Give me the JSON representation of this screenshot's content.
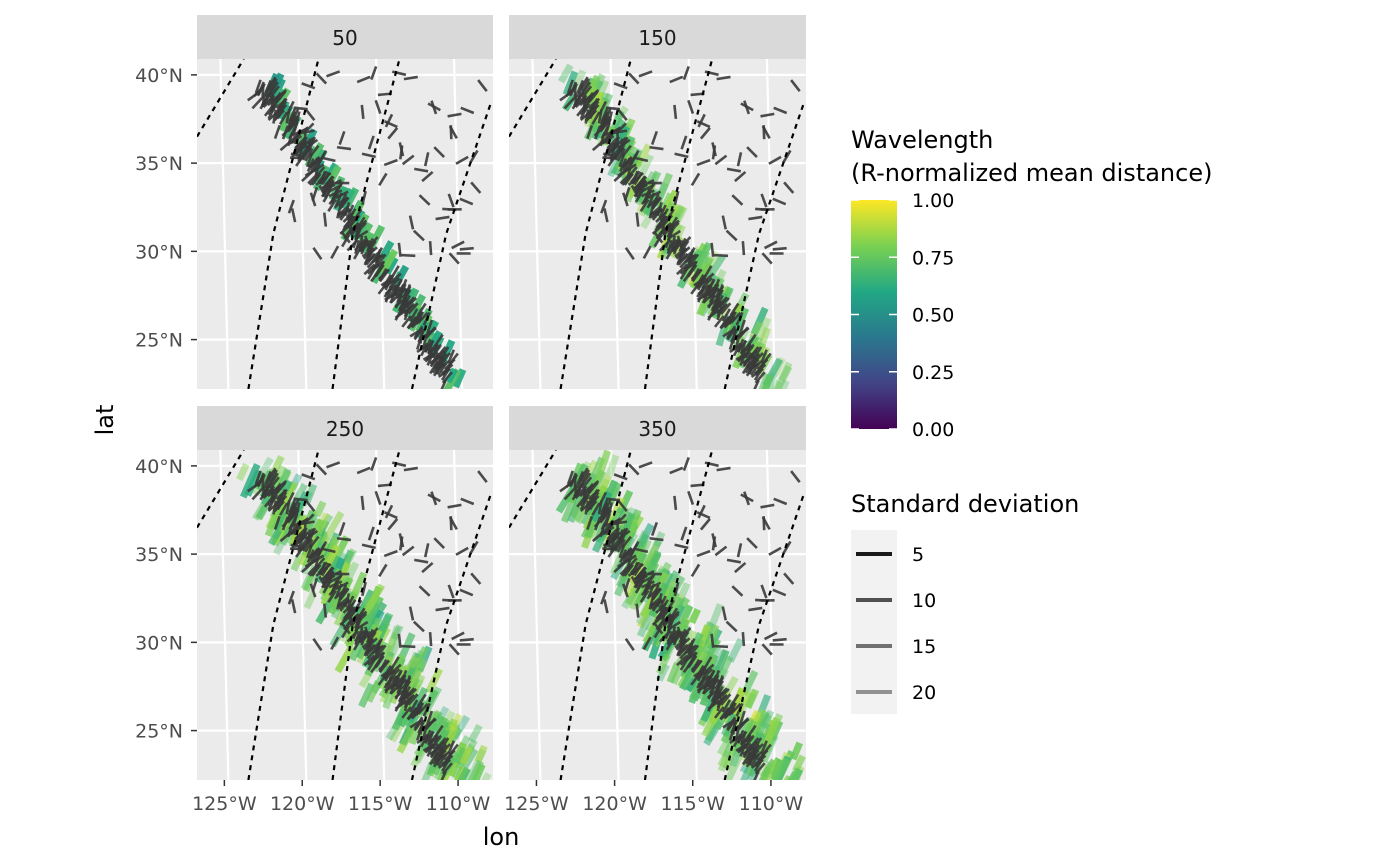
{
  "chart_data": {
    "type": "faceted-map-segments",
    "facet_variable_values": [
      "50",
      "150",
      "250",
      "350"
    ],
    "xlabel": "lon",
    "ylabel": "lat",
    "x_ticks": [
      "125°W",
      "120°W",
      "115°W",
      "110°W"
    ],
    "x_tick_values": [
      -125,
      -120,
      -115,
      -110
    ],
    "y_ticks": [
      "40°N",
      "35°N",
      "30°N",
      "25°N"
    ],
    "y_tick_values": [
      40,
      35,
      30,
      25
    ],
    "xlim": [
      -126.5,
      -107.5
    ],
    "ylim": [
      22.2,
      40.9
    ],
    "grid": true,
    "legends": [
      {
        "kind": "colorbar",
        "title_lines": [
          "Wavelength",
          "(R-normalized mean distance)"
        ],
        "ticks": [
          "1.00",
          "0.75",
          "0.50",
          "0.25",
          "0.00"
        ],
        "tick_values": [
          1.0,
          0.75,
          0.5,
          0.25,
          0.0
        ],
        "range": [
          0,
          1
        ],
        "palette": [
          "#440154",
          "#414487",
          "#2a788e",
          "#22a884",
          "#7ad151",
          "#fde725"
        ],
        "placement": "right"
      },
      {
        "kind": "linetype-alpha",
        "title": "Standard deviation",
        "labels": [
          "5",
          "10",
          "15",
          "20"
        ],
        "values": [
          5,
          10,
          15,
          20
        ],
        "placement": "right"
      }
    ],
    "reference_lines": [
      {
        "name": "dashed-curve-1",
        "points": [
          [
            -126.5,
            36.5
          ],
          [
            -123.5,
            40.9
          ]
        ]
      },
      {
        "name": "dashed-curve-2",
        "points": [
          [
            -123.2,
            22.2
          ],
          [
            -121.6,
            31
          ],
          [
            -118.7,
            40.9
          ]
        ]
      },
      {
        "name": "dashed-curve-3",
        "points": [
          [
            -117.8,
            22.2
          ],
          [
            -116.5,
            31
          ],
          [
            -113.5,
            40.9
          ]
        ]
      },
      {
        "name": "dashed-curve-4",
        "points": [
          [
            -112.7,
            22.2
          ],
          [
            -110.5,
            31
          ],
          [
            -107.6,
            38.5
          ]
        ]
      }
    ]
  }
}
